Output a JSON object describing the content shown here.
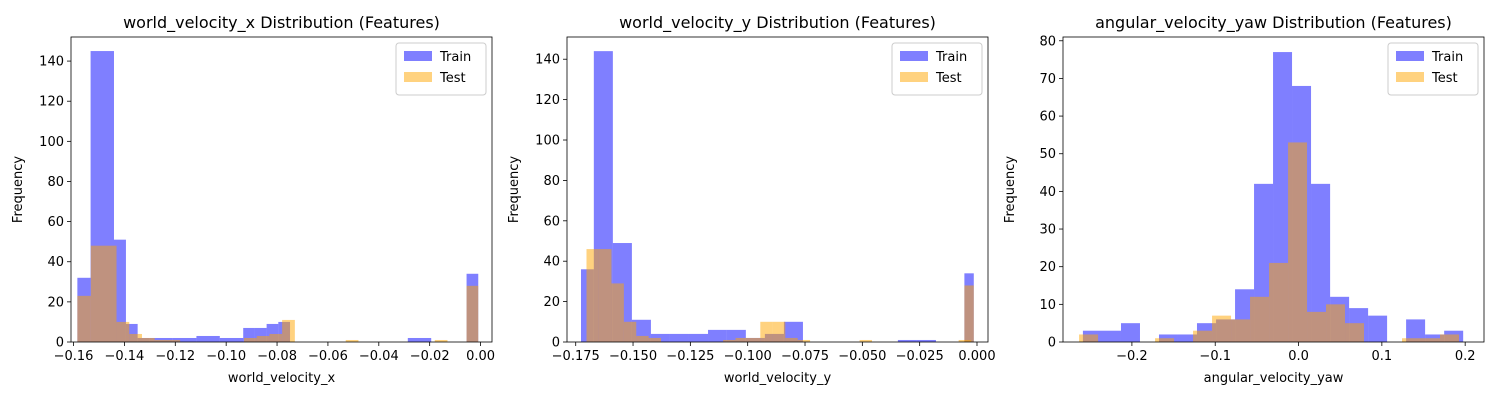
{
  "figure": {
    "background": "#ffffff"
  },
  "colors": {
    "train": "#0000ff",
    "test": "#ffa500",
    "train_alpha": 0.5,
    "test_alpha": 0.5
  },
  "chart_data": [
    {
      "type": "histogram",
      "title": "world_velocity_x Distribution (Features)",
      "xlabel": "world_velocity_x",
      "ylabel": "Frequency",
      "xlim": [
        -0.161,
        0.0045
      ],
      "ylim": [
        0,
        152
      ],
      "xticks": [
        -0.16,
        -0.14,
        -0.12,
        -0.1,
        -0.08,
        -0.06,
        -0.04,
        -0.02,
        0.0
      ],
      "xtick_labels": [
        "−0.16",
        "−0.14",
        "−0.12",
        "−0.10",
        "−0.08",
        "−0.06",
        "−0.04",
        "−0.02",
        "0.00"
      ],
      "yticks": [
        0,
        20,
        40,
        60,
        80,
        100,
        120,
        140
      ],
      "ytick_labels": [
        "0",
        "20",
        "40",
        "60",
        "80",
        "100",
        "120",
        "140"
      ],
      "legend": {
        "position": "upper right",
        "entries": [
          "Train",
          "Test"
        ]
      },
      "series": [
        {
          "name": "Train",
          "bins": [
            [
              -0.1585,
              -0.1533,
              32
            ],
            [
              -0.1533,
              -0.1441,
              145
            ],
            [
              -0.1441,
              -0.1394,
              51
            ],
            [
              -0.1394,
              -0.1348,
              9
            ],
            [
              -0.1348,
              -0.1302,
              2
            ],
            [
              -0.1302,
              -0.121,
              2
            ],
            [
              -0.121,
              -0.1117,
              2
            ],
            [
              -0.1117,
              -0.1025,
              3
            ],
            [
              -0.1025,
              -0.0933,
              2
            ],
            [
              -0.0933,
              -0.0887,
              7
            ],
            [
              -0.0887,
              -0.0841,
              7
            ],
            [
              -0.0841,
              -0.0795,
              9
            ],
            [
              -0.0795,
              -0.0749,
              10
            ],
            [
              -0.0286,
              -0.0194,
              2
            ],
            [
              -0.0055,
              -0.0009,
              34
            ]
          ]
        },
        {
          "name": "Test",
          "bins": [
            [
              -0.1585,
              -0.1532,
              23
            ],
            [
              -0.1532,
              -0.1431,
              48
            ],
            [
              -0.1431,
              -0.1381,
              10
            ],
            [
              -0.1381,
              -0.1331,
              4
            ],
            [
              -0.1331,
              -0.1281,
              2
            ],
            [
              -0.1281,
              -0.1231,
              1
            ],
            [
              -0.1231,
              -0.1181,
              1
            ],
            [
              -0.093,
              -0.088,
              2
            ],
            [
              -0.088,
              -0.083,
              3
            ],
            [
              -0.083,
              -0.078,
              4
            ],
            [
              -0.078,
              -0.073,
              11
            ],
            [
              -0.053,
              -0.048,
              1
            ],
            [
              -0.018,
              -0.013,
              1
            ],
            [
              -0.0055,
              -0.0009,
              28
            ]
          ]
        }
      ]
    },
    {
      "type": "histogram",
      "title": "world_velocity_y Distribution (Features)",
      "xlabel": "world_velocity_y",
      "ylabel": "Frequency",
      "xlim": [
        -0.1788,
        0.0048
      ],
      "ylim": [
        0,
        151
      ],
      "xticks": [
        -0.175,
        -0.15,
        -0.125,
        -0.1,
        -0.075,
        -0.05,
        -0.025,
        0.0
      ],
      "xtick_labels": [
        "−0.175",
        "−0.150",
        "−0.125",
        "−0.100",
        "−0.075",
        "−0.050",
        "−0.025",
        "0.000"
      ],
      "yticks": [
        0,
        20,
        40,
        60,
        80,
        100,
        120,
        140
      ],
      "ytick_labels": [
        "0",
        "20",
        "40",
        "60",
        "80",
        "100",
        "120",
        "140"
      ],
      "legend": {
        "position": "upper right",
        "entries": [
          "Train",
          "Test"
        ]
      },
      "series": [
        {
          "name": "Train",
          "bins": [
            [
              -0.1727,
              -0.1671,
              36
            ],
            [
              -0.1671,
              -0.1588,
              144
            ],
            [
              -0.1588,
              -0.1505,
              49
            ],
            [
              -0.1505,
              -0.1422,
              11
            ],
            [
              -0.1422,
              -0.1339,
              4
            ],
            [
              -0.1339,
              -0.1256,
              4
            ],
            [
              -0.1256,
              -0.1173,
              4
            ],
            [
              -0.1173,
              -0.1091,
              6
            ],
            [
              -0.1091,
              -0.1008,
              6
            ],
            [
              -0.1008,
              -0.0925,
              2
            ],
            [
              -0.0925,
              -0.0842,
              4
            ],
            [
              -0.0842,
              -0.0759,
              10
            ],
            [
              -0.0345,
              -0.0262,
              1
            ],
            [
              -0.0262,
              -0.0179,
              1
            ],
            [
              -0.0055,
              -0.0014,
              34
            ]
          ]
        },
        {
          "name": "Test",
          "bins": [
            [
              -0.1703,
              -0.1649,
              46
            ],
            [
              -0.1649,
              -0.1594,
              46
            ],
            [
              -0.1594,
              -0.154,
              29
            ],
            [
              -0.154,
              -0.1486,
              10
            ],
            [
              -0.1486,
              -0.1432,
              3
            ],
            [
              -0.1432,
              -0.1378,
              2
            ],
            [
              -0.1107,
              -0.1053,
              1
            ],
            [
              -0.1053,
              -0.0999,
              2
            ],
            [
              -0.0999,
              -0.0945,
              2
            ],
            [
              -0.0945,
              -0.089,
              10
            ],
            [
              -0.089,
              -0.0836,
              10
            ],
            [
              -0.0836,
              -0.0782,
              2
            ],
            [
              -0.0782,
              -0.0728,
              1
            ],
            [
              -0.0512,
              -0.0458,
              1
            ],
            [
              -0.008,
              -0.0025,
              1
            ],
            [
              -0.0055,
              -0.0014,
              28
            ]
          ]
        }
      ]
    },
    {
      "type": "histogram",
      "title": "angular_velocity_yaw Distribution (Features)",
      "xlabel": "angular_velocity_yaw",
      "ylabel": "Frequency",
      "xlim": [
        -0.2827,
        0.2226
      ],
      "ylim": [
        0,
        81
      ],
      "xticks": [
        -0.2,
        -0.1,
        0.0,
        0.1,
        0.2
      ],
      "xtick_labels": [
        "−0.2",
        "−0.1",
        "0.0",
        "0.1",
        "0.2"
      ],
      "yticks": [
        0,
        10,
        20,
        30,
        40,
        50,
        60,
        70,
        80
      ],
      "ytick_labels": [
        "0",
        "10",
        "20",
        "30",
        "40",
        "50",
        "60",
        "70",
        "80"
      ],
      "legend": {
        "position": "upper right",
        "entries": [
          "Train",
          "Test"
        ]
      },
      "series": [
        {
          "name": "Train",
          "bins": [
            [
              -0.2588,
              -0.2359,
              3
            ],
            [
              -0.2359,
              -0.2131,
              3
            ],
            [
              -0.2131,
              -0.1903,
              5
            ],
            [
              -0.1675,
              -0.1447,
              2
            ],
            [
              -0.1447,
              -0.1219,
              2
            ],
            [
              -0.1219,
              -0.099,
              5
            ],
            [
              -0.099,
              -0.0762,
              6
            ],
            [
              -0.0762,
              -0.0534,
              14
            ],
            [
              -0.0534,
              -0.0306,
              42
            ],
            [
              -0.0306,
              -0.0078,
              77
            ],
            [
              -0.0078,
              0.015,
              68
            ],
            [
              0.015,
              0.0379,
              42
            ],
            [
              0.0379,
              0.0607,
              12
            ],
            [
              0.0607,
              0.0835,
              9
            ],
            [
              0.0835,
              0.1063,
              7
            ],
            [
              0.1291,
              0.1519,
              6
            ],
            [
              0.1519,
              0.1748,
              2
            ],
            [
              0.1748,
              0.1976,
              3
            ]
          ]
        },
        {
          "name": "Test",
          "bins": [
            [
              -0.2634,
              -0.2406,
              2
            ],
            [
              -0.1722,
              -0.1494,
              1
            ],
            [
              -0.1266,
              -0.1038,
              3
            ],
            [
              -0.1038,
              -0.081,
              7
            ],
            [
              -0.081,
              -0.0582,
              6
            ],
            [
              -0.0582,
              -0.0354,
              12
            ],
            [
              -0.0354,
              -0.0126,
              21
            ],
            [
              -0.0126,
              0.0102,
              53
            ],
            [
              0.0102,
              0.033,
              8
            ],
            [
              0.033,
              0.0558,
              10
            ],
            [
              0.0558,
              0.0786,
              5
            ],
            [
              0.1242,
              0.147,
              1
            ],
            [
              0.147,
              0.1698,
              1
            ],
            [
              0.1698,
              0.1926,
              2
            ]
          ]
        }
      ]
    }
  ]
}
